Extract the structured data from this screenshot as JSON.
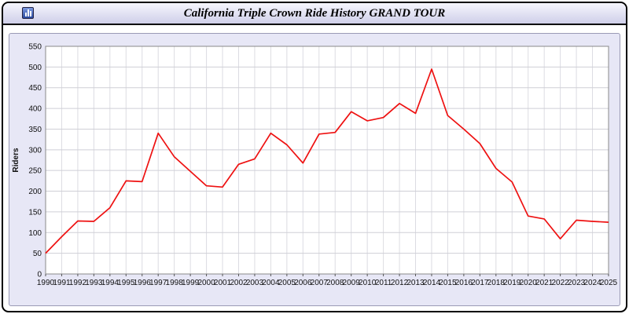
{
  "window": {
    "title": "California Triple Crown Ride History GRAND TOUR",
    "icon": "chart-window-icon"
  },
  "chart_data": {
    "type": "line",
    "title": "California Triple Crown Ride History GRAND TOUR",
    "xlabel": "",
    "ylabel": "Riders",
    "ylim": [
      0,
      550
    ],
    "ytick_step": 50,
    "grid": true,
    "legend": "none",
    "line_color": "#ee1111",
    "plot_bg": "#ffffff",
    "panel_bg": "#e7e7f6",
    "categories": [
      "1990",
      "1991",
      "1992",
      "1993",
      "1994",
      "1995",
      "1996",
      "1997",
      "1998",
      "1999",
      "2000",
      "2001",
      "2002",
      "2003",
      "2004",
      "2005",
      "2006",
      "2007",
      "2008",
      "2009",
      "2010",
      "2011",
      "2012",
      "2013",
      "2014",
      "2015",
      "2016",
      "2017",
      "2018",
      "2019",
      "2020",
      "2021",
      "2022",
      "2023",
      "2024",
      "2025"
    ],
    "values": [
      50,
      90,
      128,
      127,
      160,
      225,
      223,
      340,
      283,
      248,
      213,
      210,
      265,
      278,
      340,
      312,
      268,
      338,
      342,
      392,
      370,
      378,
      412,
      388,
      495,
      383,
      350,
      315,
      255,
      222,
      140,
      133,
      85,
      130,
      127,
      125
    ]
  }
}
